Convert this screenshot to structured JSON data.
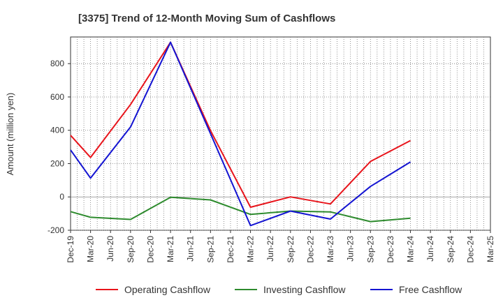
{
  "chart_data": {
    "type": "line",
    "title": "[3375]  Trend of 12-Month Moving Sum of Cashflows",
    "xlabel": "",
    "ylabel": "Amount (million yen)",
    "categories": [
      "Dec-19",
      "Mar-20",
      "Jun-20",
      "Sep-20",
      "Dec-20",
      "Mar-21",
      "Jun-21",
      "Sep-21",
      "Dec-21",
      "Mar-22",
      "Jun-22",
      "Sep-22",
      "Dec-22",
      "Mar-23",
      "Jun-23",
      "Sep-23",
      "Dec-23",
      "Mar-24",
      "Jun-24",
      "Sep-24",
      "Dec-24",
      "Mar-25"
    ],
    "yticks": [
      -200,
      0,
      200,
      400,
      600,
      800
    ],
    "ylim": [
      -200,
      960
    ],
    "grid": true,
    "legend_position": "bottom",
    "series": [
      {
        "name": "Operating Cashflow",
        "color": "#e8141b",
        "values": [
          370,
          237,
          null,
          555,
          null,
          928,
          null,
          398,
          null,
          -62,
          null,
          0,
          null,
          -42,
          null,
          213,
          null,
          338,
          null,
          null,
          null,
          null
        ]
      },
      {
        "name": "Investing Cashflow",
        "color": "#2e8b2e",
        "values": [
          -88,
          -122,
          null,
          -135,
          null,
          -2,
          null,
          -18,
          null,
          -105,
          null,
          -85,
          null,
          -90,
          null,
          -148,
          null,
          -128,
          null,
          null,
          null,
          null
        ]
      },
      {
        "name": "Free Cashflow",
        "color": "#1414d2",
        "values": [
          282,
          113,
          null,
          420,
          null,
          928,
          null,
          380,
          null,
          -172,
          null,
          -85,
          null,
          -133,
          null,
          63,
          null,
          210,
          null,
          null,
          null,
          null
        ]
      }
    ]
  }
}
